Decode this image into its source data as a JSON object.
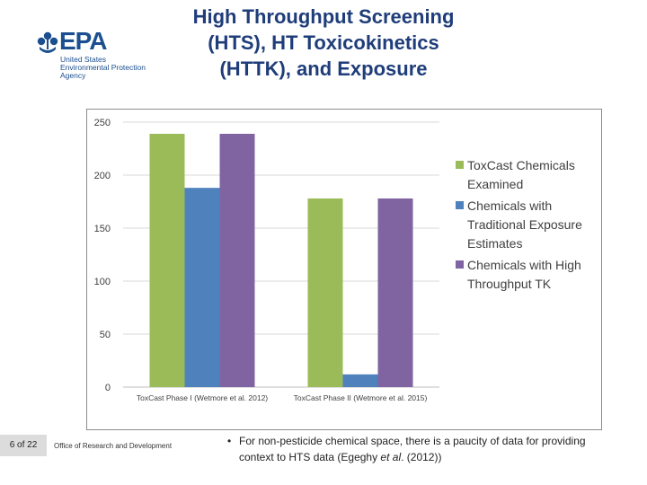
{
  "slide": {
    "title_lines": [
      "High Throughput Screening",
      "(HTS), HT Toxicokinetics",
      "(HTTK), and Exposure"
    ],
    "logo": {
      "text": "EPA",
      "subtitle_lines": [
        "United States",
        "Environmental Protection",
        "Agency"
      ],
      "color": "#1b4f8f",
      "icon": "epa-flower-icon"
    },
    "footer": {
      "page": "6 of 22",
      "office": "Office of Research and Development"
    },
    "bullet": {
      "text_before": "For non-pesticide chemical space, there is a paucity of data for providing context to HTS data (Egeghy ",
      "italic": "et al",
      "text_after": ". (2012))"
    }
  },
  "chart_data": {
    "type": "bar",
    "categories": [
      "ToxCast Phase I (Wetmore et al. 2012)",
      "ToxCast Phase II (Wetmore et al. 2015)"
    ],
    "series": [
      {
        "name": "ToxCast Chemicals Examined",
        "values": [
          239,
          178
        ],
        "color": "#9bbb59"
      },
      {
        "name": "Chemicals with Traditional Exposure Estimates",
        "values": [
          188,
          12
        ],
        "color": "#4f81bd"
      },
      {
        "name": "Chemicals with High Throughput TK",
        "values": [
          239,
          178
        ],
        "color": "#8064a2"
      }
    ],
    "ylim": [
      0,
      250
    ],
    "yticks": [
      0,
      50,
      100,
      150,
      200,
      250
    ],
    "grid": true,
    "legend": "right"
  }
}
